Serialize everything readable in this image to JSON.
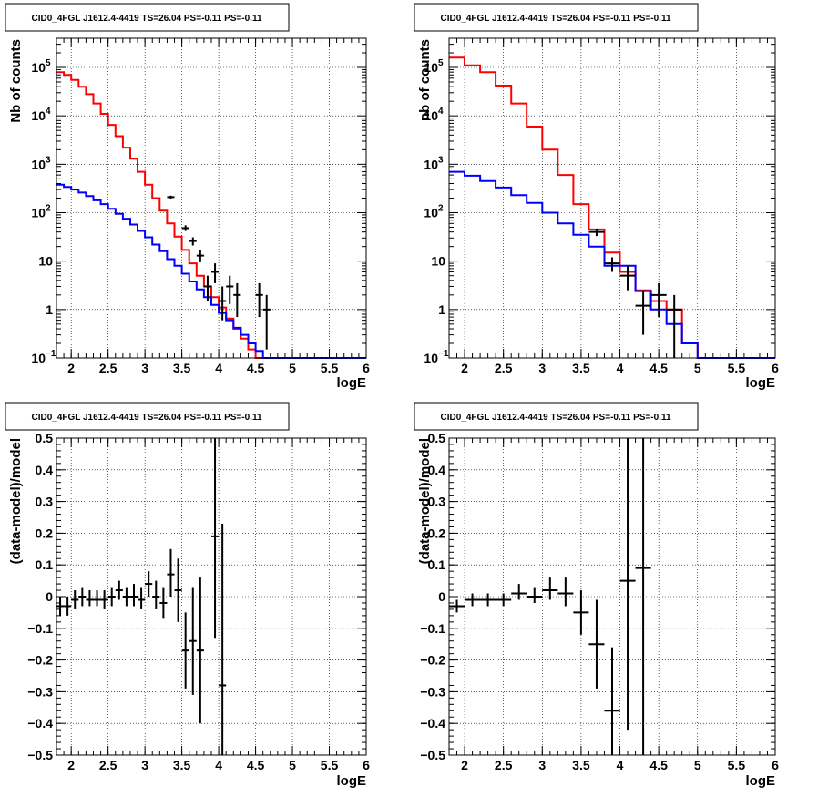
{
  "chart_data": [
    {
      "type": "line",
      "title": "CID0_4FGL J1612.4-4419 TS=26.04 PS=-0.11 PS=-0.11",
      "xlabel": "logE",
      "ylabel": "Nb of counts",
      "xlim": [
        1.8,
        6.0
      ],
      "ylim": [
        0.1,
        400000
      ],
      "yscale": "log",
      "grid": true,
      "x_ticks": [
        "2",
        "2.5",
        "3",
        "3.5",
        "4",
        "4.5",
        "5",
        "5.5",
        "6"
      ],
      "y_ticks": [
        {
          "value": 0.1,
          "label": "10",
          "sup": "−1"
        },
        {
          "value": 1,
          "label": "1",
          "sup": ""
        },
        {
          "value": 10,
          "label": "10",
          "sup": ""
        },
        {
          "value": 100,
          "label": "10",
          "sup": "2"
        },
        {
          "value": 1000,
          "label": "10",
          "sup": "3"
        },
        {
          "value": 10000,
          "label": "10",
          "sup": "4"
        },
        {
          "value": 100000,
          "label": "10",
          "sup": "5"
        }
      ],
      "series": [
        {
          "color": "#ff0000",
          "bin_edges": [
            1.8,
            1.9,
            2.0,
            2.1,
            2.2,
            2.3,
            2.4,
            2.5,
            2.6,
            2.7,
            2.8,
            2.9,
            3.0,
            3.1,
            3.2,
            3.3,
            3.4,
            3.5,
            3.6,
            3.7,
            3.8,
            3.9,
            4.0,
            4.1,
            4.2,
            4.3,
            4.4,
            4.5,
            4.6,
            4.7,
            4.8,
            4.9,
            5.0,
            5.1,
            5.2,
            5.3,
            5.4,
            5.5,
            5.6,
            5.7,
            5.8,
            5.9,
            6.0
          ],
          "values": [
            80000,
            70000,
            55000,
            40000,
            28000,
            18000,
            11000,
            6500,
            3800,
            2200,
            1300,
            700,
            380,
            200,
            110,
            60,
            32,
            17,
            9,
            5,
            3,
            1.8,
            1.1,
            0.65,
            0.4,
            0.25,
            0.15,
            0.1,
            0.1,
            0.1,
            0.1,
            0.1,
            0.1,
            0.1,
            0.1,
            0.1,
            0.1,
            0.1,
            0.1,
            0.1,
            0.1,
            0.1
          ]
        },
        {
          "color": "#0000ff",
          "bin_edges": [
            1.8,
            1.9,
            2.0,
            2.1,
            2.2,
            2.3,
            2.4,
            2.5,
            2.6,
            2.7,
            2.8,
            2.9,
            3.0,
            3.1,
            3.2,
            3.3,
            3.4,
            3.5,
            3.6,
            3.7,
            3.8,
            3.9,
            4.0,
            4.1,
            4.2,
            4.3,
            4.4,
            4.5,
            4.6,
            4.7,
            4.8,
            4.9,
            5.0,
            5.1,
            5.2,
            5.3,
            5.4,
            5.5,
            5.6,
            5.7,
            5.8,
            5.9,
            6.0
          ],
          "values": [
            380,
            340,
            300,
            260,
            220,
            180,
            150,
            120,
            95,
            75,
            57,
            42,
            31,
            22,
            16,
            11,
            8,
            5.5,
            3.8,
            2.6,
            1.8,
            1.25,
            0.85,
            0.6,
            0.42,
            0.3,
            0.2,
            0.14,
            0.1,
            0.1,
            0.1,
            0.1,
            0.1,
            0.1,
            0.1,
            0.1,
            0.1,
            0.1,
            0.1,
            0.1,
            0.1,
            0.1
          ]
        }
      ],
      "points": [
        {
          "x": 3.35,
          "y": 210,
          "xerr": 0.05,
          "ylo": 195,
          "yhi": 225
        },
        {
          "x": 3.55,
          "y": 48,
          "xerr": 0.05,
          "ylo": 42,
          "yhi": 55
        },
        {
          "x": 3.65,
          "y": 26,
          "xerr": 0.05,
          "ylo": 21,
          "yhi": 31
        },
        {
          "x": 3.75,
          "y": 13,
          "xerr": 0.05,
          "ylo": 9.5,
          "yhi": 17
        },
        {
          "x": 3.85,
          "y": 3,
          "xerr": 0.05,
          "ylo": 1.5,
          "yhi": 5
        },
        {
          "x": 3.95,
          "y": 6,
          "xerr": 0.05,
          "ylo": 3.5,
          "yhi": 9
        },
        {
          "x": 4.05,
          "y": 1.5,
          "xerr": 0.05,
          "ylo": 0.6,
          "yhi": 3
        },
        {
          "x": 4.15,
          "y": 3,
          "xerr": 0.05,
          "ylo": 1.3,
          "yhi": 5
        },
        {
          "x": 4.25,
          "y": 2,
          "xerr": 0.05,
          "ylo": 0.7,
          "yhi": 3.5
        },
        {
          "x": 4.55,
          "y": 2,
          "xerr": 0.05,
          "ylo": 0.7,
          "yhi": 3.5
        },
        {
          "x": 4.65,
          "y": 1,
          "xerr": 0.05,
          "ylo": 0.15,
          "yhi": 2
        }
      ]
    },
    {
      "type": "line",
      "title": "CID0_4FGL J1612.4-4419 TS=26.04 PS=-0.11 PS=-0.11",
      "xlabel": "logE",
      "ylabel": "nb of counts",
      "xlim": [
        1.8,
        6.0
      ],
      "ylim": [
        0.1,
        400000
      ],
      "yscale": "log",
      "grid": true,
      "x_ticks": [
        "2",
        "2.5",
        "3",
        "3.5",
        "4",
        "4.5",
        "5",
        "5.5",
        "6"
      ],
      "y_ticks": [
        {
          "value": 0.1,
          "label": "10",
          "sup": "−1"
        },
        {
          "value": 1,
          "label": "1",
          "sup": ""
        },
        {
          "value": 10,
          "label": "10",
          "sup": ""
        },
        {
          "value": 100,
          "label": "10",
          "sup": "2"
        },
        {
          "value": 1000,
          "label": "10",
          "sup": "3"
        },
        {
          "value": 10000,
          "label": "10",
          "sup": "4"
        },
        {
          "value": 100000,
          "label": "10",
          "sup": "5"
        }
      ],
      "series": [
        {
          "color": "#ff0000",
          "bin_edges": [
            1.8,
            2.0,
            2.2,
            2.4,
            2.6,
            2.8,
            3.0,
            3.2,
            3.4,
            3.6,
            3.8,
            4.0,
            4.2,
            4.4,
            4.6,
            4.8,
            5.0,
            5.2,
            5.4,
            5.6,
            5.8,
            6.0
          ],
          "values": [
            160000,
            110000,
            80000,
            42000,
            18000,
            6000,
            2000,
            600,
            150,
            45,
            15,
            6,
            2.5,
            1.5,
            1.0,
            0.2,
            0.1,
            0.1,
            0.1,
            0.1,
            0.1
          ]
        },
        {
          "color": "#0000ff",
          "bin_edges": [
            1.8,
            2.0,
            2.2,
            2.4,
            2.6,
            2.8,
            3.0,
            3.2,
            3.4,
            3.6,
            3.8,
            4.0,
            4.2,
            4.4,
            4.6,
            4.8,
            5.0,
            5.2,
            5.4,
            5.6,
            5.8,
            6.0
          ],
          "values": [
            700,
            580,
            450,
            330,
            230,
            160,
            100,
            60,
            35,
            20,
            8,
            8,
            2.4,
            1.0,
            0.5,
            0.2,
            0.1,
            0.1,
            0.1,
            0.1,
            0.1
          ]
        }
      ],
      "points": [
        {
          "x": 3.7,
          "y": 40,
          "xerr": 0.1,
          "ylo": 33,
          "yhi": 47
        },
        {
          "x": 3.9,
          "y": 9,
          "xerr": 0.1,
          "ylo": 6,
          "yhi": 12
        },
        {
          "x": 4.1,
          "y": 5,
          "xerr": 0.1,
          "ylo": 2.5,
          "yhi": 8
        },
        {
          "x": 4.3,
          "y": 1.2,
          "xerr": 0.1,
          "ylo": 0.3,
          "yhi": 2.5
        },
        {
          "x": 4.5,
          "y": 2,
          "xerr": 0.1,
          "ylo": 0.7,
          "yhi": 3.5
        },
        {
          "x": 4.7,
          "y": 1,
          "xerr": 0.1,
          "ylo": 0.1,
          "yhi": 2
        }
      ]
    },
    {
      "type": "scatter",
      "title": "CID0_4FGL J1612.4-4419 TS=26.04 PS=-0.11 PS=-0.11",
      "xlabel": "logE",
      "ylabel": "(data-model)/model",
      "xlim": [
        1.8,
        6.0
      ],
      "ylim": [
        -0.5,
        0.5
      ],
      "grid": true,
      "x_ticks": [
        "2",
        "2.5",
        "3",
        "3.5",
        "4",
        "4.5",
        "5",
        "5.5",
        "6"
      ],
      "y_ticks": [
        "−0.5",
        "−0.4",
        "−0.3",
        "−0.2",
        "−0.1",
        "0",
        "0.1",
        "0.2",
        "0.3",
        "0.4",
        "0.5"
      ],
      "points": [
        {
          "x": 1.85,
          "y": -0.03,
          "xerr": 0.05,
          "ylo": -0.06,
          "yhi": 0.0
        },
        {
          "x": 1.95,
          "y": -0.03,
          "xerr": 0.05,
          "ylo": -0.06,
          "yhi": 0.0
        },
        {
          "x": 2.05,
          "y": -0.01,
          "xerr": 0.05,
          "ylo": -0.04,
          "yhi": 0.02
        },
        {
          "x": 2.15,
          "y": 0.0,
          "xerr": 0.05,
          "ylo": -0.03,
          "yhi": 0.03
        },
        {
          "x": 2.25,
          "y": -0.01,
          "xerr": 0.05,
          "ylo": -0.03,
          "yhi": 0.02
        },
        {
          "x": 2.35,
          "y": -0.01,
          "xerr": 0.05,
          "ylo": -0.03,
          "yhi": 0.02
        },
        {
          "x": 2.45,
          "y": -0.01,
          "xerr": 0.05,
          "ylo": -0.04,
          "yhi": 0.02
        },
        {
          "x": 2.55,
          "y": 0.0,
          "xerr": 0.05,
          "ylo": -0.03,
          "yhi": 0.03
        },
        {
          "x": 2.65,
          "y": 0.02,
          "xerr": 0.05,
          "ylo": -0.01,
          "yhi": 0.05
        },
        {
          "x": 2.75,
          "y": 0.0,
          "xerr": 0.05,
          "ylo": -0.03,
          "yhi": 0.03
        },
        {
          "x": 2.85,
          "y": 0.0,
          "xerr": 0.05,
          "ylo": -0.03,
          "yhi": 0.04
        },
        {
          "x": 2.95,
          "y": -0.01,
          "xerr": 0.05,
          "ylo": -0.04,
          "yhi": 0.03
        },
        {
          "x": 3.05,
          "y": 0.04,
          "xerr": 0.05,
          "ylo": 0.0,
          "yhi": 0.08
        },
        {
          "x": 3.15,
          "y": 0.0,
          "xerr": 0.05,
          "ylo": -0.04,
          "yhi": 0.05
        },
        {
          "x": 3.25,
          "y": -0.02,
          "xerr": 0.05,
          "ylo": -0.07,
          "yhi": 0.03
        },
        {
          "x": 3.35,
          "y": 0.07,
          "xerr": 0.05,
          "ylo": 0.0,
          "yhi": 0.15
        },
        {
          "x": 3.45,
          "y": 0.02,
          "xerr": 0.05,
          "ylo": -0.08,
          "yhi": 0.12
        },
        {
          "x": 3.55,
          "y": -0.17,
          "xerr": 0.05,
          "ylo": -0.29,
          "yhi": -0.05
        },
        {
          "x": 3.65,
          "y": -0.14,
          "xerr": 0.05,
          "ylo": -0.31,
          "yhi": 0.03
        },
        {
          "x": 3.75,
          "y": -0.17,
          "xerr": 0.05,
          "ylo": -0.4,
          "yhi": 0.06
        },
        {
          "x": 3.95,
          "y": 0.19,
          "xerr": 0.05,
          "ylo": -0.13,
          "yhi": 0.5
        },
        {
          "x": 4.05,
          "y": -0.28,
          "xerr": 0.05,
          "ylo": -0.5,
          "yhi": 0.23
        }
      ]
    },
    {
      "type": "scatter",
      "title": "CID0_4FGL J1612.4-4419 TS=26.04 PS=-0.11 PS=-0.11",
      "xlabel": "logE",
      "ylabel": "(data-model)/model",
      "xlim": [
        1.8,
        6.0
      ],
      "ylim": [
        -0.5,
        0.5
      ],
      "grid": true,
      "x_ticks": [
        "2",
        "2.5",
        "3",
        "3.5",
        "4",
        "4.5",
        "5",
        "5.5",
        "6"
      ],
      "y_ticks": [
        "−0.5",
        "−0.4",
        "−0.3",
        "−0.2",
        "−0.1",
        "0",
        "0.1",
        "0.2",
        "0.3",
        "0.4",
        "0.5"
      ],
      "points": [
        {
          "x": 1.9,
          "y": -0.03,
          "xerr": 0.1,
          "ylo": -0.05,
          "yhi": -0.01
        },
        {
          "x": 2.1,
          "y": -0.01,
          "xerr": 0.1,
          "ylo": -0.03,
          "yhi": 0.01
        },
        {
          "x": 2.3,
          "y": -0.01,
          "xerr": 0.1,
          "ylo": -0.03,
          "yhi": 0.01
        },
        {
          "x": 2.5,
          "y": -0.01,
          "xerr": 0.1,
          "ylo": -0.03,
          "yhi": 0.01
        },
        {
          "x": 2.7,
          "y": 0.01,
          "xerr": 0.1,
          "ylo": -0.01,
          "yhi": 0.04
        },
        {
          "x": 2.9,
          "y": 0.0,
          "xerr": 0.1,
          "ylo": -0.02,
          "yhi": 0.03
        },
        {
          "x": 3.1,
          "y": 0.02,
          "xerr": 0.1,
          "ylo": -0.01,
          "yhi": 0.06
        },
        {
          "x": 3.3,
          "y": 0.01,
          "xerr": 0.1,
          "ylo": -0.03,
          "yhi": 0.06
        },
        {
          "x": 3.5,
          "y": -0.05,
          "xerr": 0.1,
          "ylo": -0.12,
          "yhi": 0.02
        },
        {
          "x": 3.7,
          "y": -0.15,
          "xerr": 0.1,
          "ylo": -0.29,
          "yhi": -0.01
        },
        {
          "x": 3.9,
          "y": -0.36,
          "xerr": 0.1,
          "ylo": -0.5,
          "yhi": -0.16
        },
        {
          "x": 4.1,
          "y": 0.05,
          "xerr": 0.1,
          "ylo": -0.42,
          "yhi": 0.5
        },
        {
          "x": 4.3,
          "y": 0.09,
          "xerr": 0.1,
          "ylo": -0.5,
          "yhi": 0.5
        }
      ]
    }
  ]
}
